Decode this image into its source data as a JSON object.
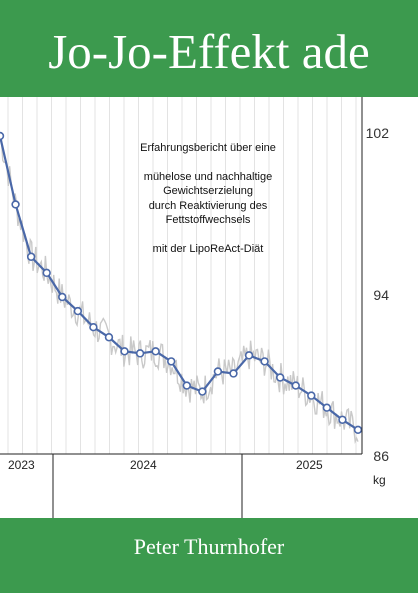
{
  "cover": {
    "title": "Jo-Jo-Effekt ade",
    "author": "Peter Thurnhofer",
    "blurb": {
      "line1": "Erfahrungsbericht über eine",
      "line2": "mühelose und nachhaltige",
      "line3": "Gewichtserzielung",
      "line4": "durch Reaktivierung des",
      "line5": "Fettstoffwechsels",
      "line6": "mit der LipoReAct-Diät"
    },
    "colors": {
      "background": "#3c9a4e",
      "line": "#4a68a8",
      "daily": "#c9c9c9"
    }
  },
  "chart_data": {
    "type": "line",
    "unit": "kg",
    "y_ticks": [
      "102",
      "94",
      "86"
    ],
    "ylim": [
      86,
      102
    ],
    "x_labels": [
      "2023",
      "2024",
      "2025"
    ],
    "series": [
      {
        "values": [
          102.0,
          98.6,
          96.0,
          95.2,
          94.0,
          93.3,
          92.5,
          92.0,
          91.3,
          91.2,
          91.3,
          90.8,
          89.6,
          89.3,
          90.3,
          90.2,
          91.1,
          90.8,
          90.0,
          89.6,
          89.1,
          88.5,
          87.9,
          87.4
        ]
      }
    ],
    "grid": "vertical",
    "axis_position": "right"
  }
}
